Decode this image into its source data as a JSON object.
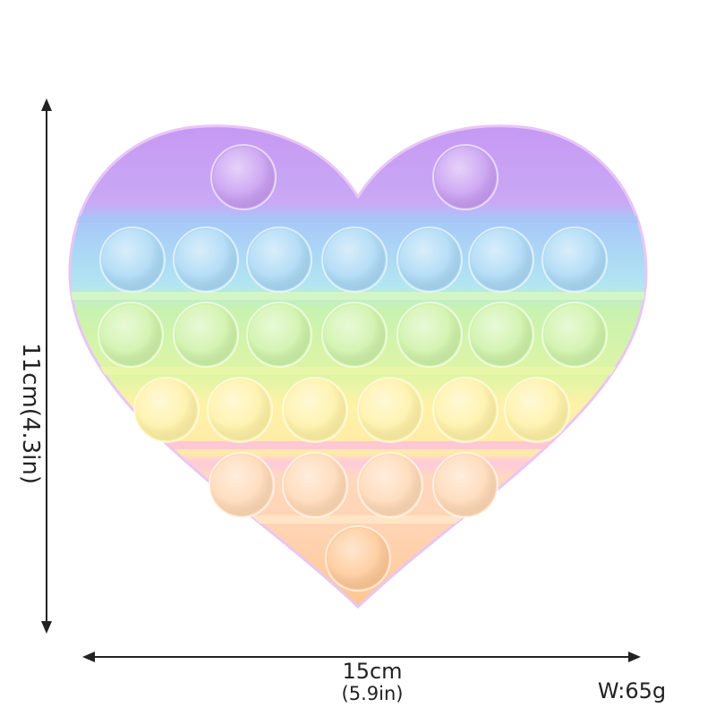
{
  "dimensions": {
    "height_label": "11cm(4.3in)",
    "width_label": "15cm",
    "width_sub_label": "(5.9in)",
    "weight_label": "W:65g"
  },
  "product": {
    "name_icon": "rainbow-heart-pop-it-icon",
    "rows": [
      {
        "band": "purple",
        "bubbles": 2
      },
      {
        "band": "blue",
        "bubbles": 7
      },
      {
        "band": "green",
        "bubbles": 7
      },
      {
        "band": "yellow",
        "bubbles": 6
      },
      {
        "band": "peach",
        "bubbles": 4
      },
      {
        "band": "orange",
        "bubbles": 1
      }
    ],
    "colors": {
      "purple": "#c79bf2",
      "blue": "#a9d8f5",
      "green": "#cdf2a6",
      "yellow": "#fff1a4",
      "pink": "#ffc6d8",
      "peach": "#ffd8b4",
      "orange": "#ffc896"
    }
  }
}
